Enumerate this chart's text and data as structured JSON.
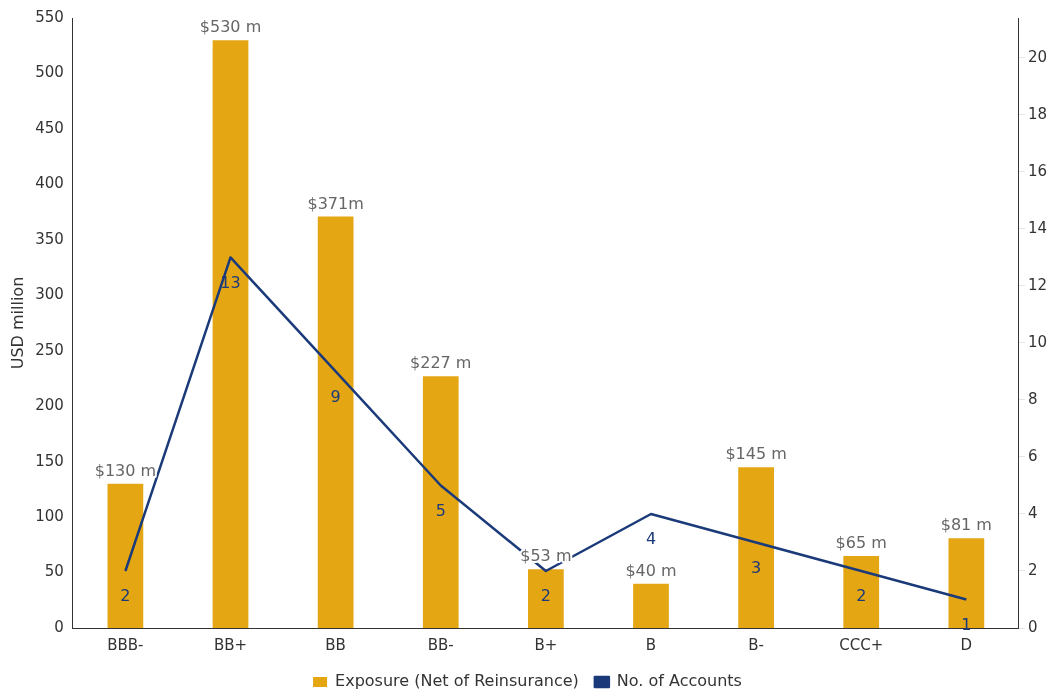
{
  "chart_data": {
    "type": "bar",
    "categories": [
      "BBB-",
      "BB+",
      "BB",
      "BB-",
      "B+",
      "B",
      "B-",
      "CCC+",
      "D"
    ],
    "ylabel": "USD million",
    "ylim": [
      0,
      550
    ],
    "yticks": [
      0,
      50,
      100,
      150,
      200,
      250,
      300,
      350,
      400,
      450,
      500,
      550
    ],
    "y2lim": [
      0,
      21.4
    ],
    "y2ticks": [
      0,
      2,
      4,
      6,
      8,
      10,
      12,
      14,
      16,
      18,
      20
    ],
    "series": [
      {
        "name": "Exposure (Net of Reinsurance)",
        "color": "#e5a614",
        "values": [
          130,
          530,
          371,
          227,
          53,
          40,
          145,
          65,
          81
        ],
        "value_labels": [
          "$130 m",
          "$530 m",
          "$371m",
          "$227 m",
          "$53 m",
          "$40 m",
          "$145 m",
          "$65 m",
          "$81 m"
        ]
      },
      {
        "name": "No. of Accounts",
        "type": "line",
        "axis": "y2",
        "color": "#1b3a7a",
        "values": [
          2,
          13,
          9,
          5,
          2,
          4,
          3,
          2,
          1
        ],
        "value_labels": [
          "2",
          "13",
          "9",
          "5",
          "2",
          "4",
          "3",
          "2",
          "1"
        ]
      }
    ],
    "grid": false,
    "legend": "bottom",
    "marker": "none",
    "line_style": "solid"
  }
}
